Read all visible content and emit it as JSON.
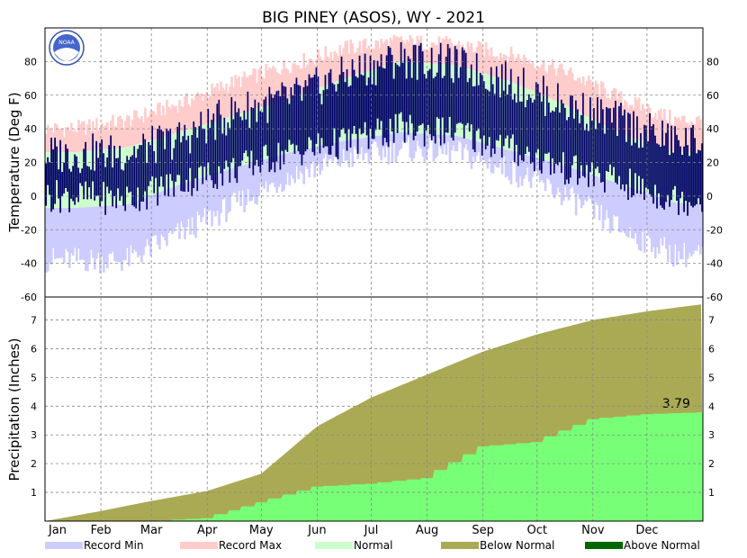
{
  "chart_data": [
    {
      "type": "bar",
      "title": "BIG PINEY (ASOS), WY - 2021",
      "ylabel": "Temperature (Deg F)",
      "ylim": [
        -60,
        100
      ],
      "yticks": [
        -60,
        -40,
        -20,
        0,
        20,
        40,
        60,
        80
      ],
      "x_months": [
        "Jan",
        "Feb",
        "Mar",
        "Apr",
        "May",
        "Jun",
        "Jul",
        "Aug",
        "Sep",
        "Oct",
        "Nov",
        "Dec"
      ],
      "normal_high_by_month": [
        26,
        29,
        38,
        48,
        58,
        70,
        80,
        78,
        68,
        54,
        37,
        26
      ],
      "normal_low_by_month": [
        -7,
        -5,
        7,
        17,
        26,
        33,
        38,
        36,
        27,
        18,
        7,
        -4
      ],
      "record_high_by_month": [
        40,
        45,
        55,
        68,
        78,
        88,
        92,
        90,
        84,
        74,
        58,
        45
      ],
      "record_low_by_month": [
        -38,
        -38,
        -22,
        -5,
        12,
        22,
        28,
        26,
        15,
        0,
        -20,
        -35
      ],
      "observed_high_by_month": [
        25,
        26,
        34,
        50,
        58,
        72,
        82,
        78,
        68,
        54,
        44,
        32
      ],
      "observed_low_by_month": [
        0,
        -2,
        8,
        16,
        26,
        32,
        40,
        38,
        28,
        16,
        8,
        -2
      ],
      "colors": {
        "record_min": "#ccccff",
        "record_max": "#ffcccc",
        "normal": "#ccffcc",
        "observed": "#000066"
      }
    },
    {
      "type": "area",
      "ylabel": "Precipitation (Inches)",
      "ylim": [
        0,
        7.8
      ],
      "yticks": [
        1,
        2,
        3,
        4,
        5,
        6,
        7
      ],
      "normal_cumulative_end_of_month": [
        0.35,
        0.7,
        1.05,
        1.65,
        3.3,
        4.3,
        5.1,
        5.9,
        6.5,
        7.0,
        7.3,
        7.55
      ],
      "observed_cumulative_end_of_month": [
        0.0,
        0.0,
        0.1,
        0.65,
        1.2,
        1.3,
        1.5,
        2.6,
        2.75,
        3.55,
        3.72,
        3.79
      ],
      "annotation": "3.79",
      "colors": {
        "below_normal": "#aaaa55",
        "above_normal": "#006600",
        "observed": "#77ff77"
      }
    }
  ],
  "legend": [
    {
      "label": "Record Min",
      "color": "#ccccff"
    },
    {
      "label": "Record Max",
      "color": "#ffcccc"
    },
    {
      "label": "Normal",
      "color": "#ccffcc"
    },
    {
      "label": "Below Normal",
      "color": "#aaaa55"
    },
    {
      "label": "Above Normal",
      "color": "#006600"
    }
  ],
  "logo_text": "NOAA"
}
